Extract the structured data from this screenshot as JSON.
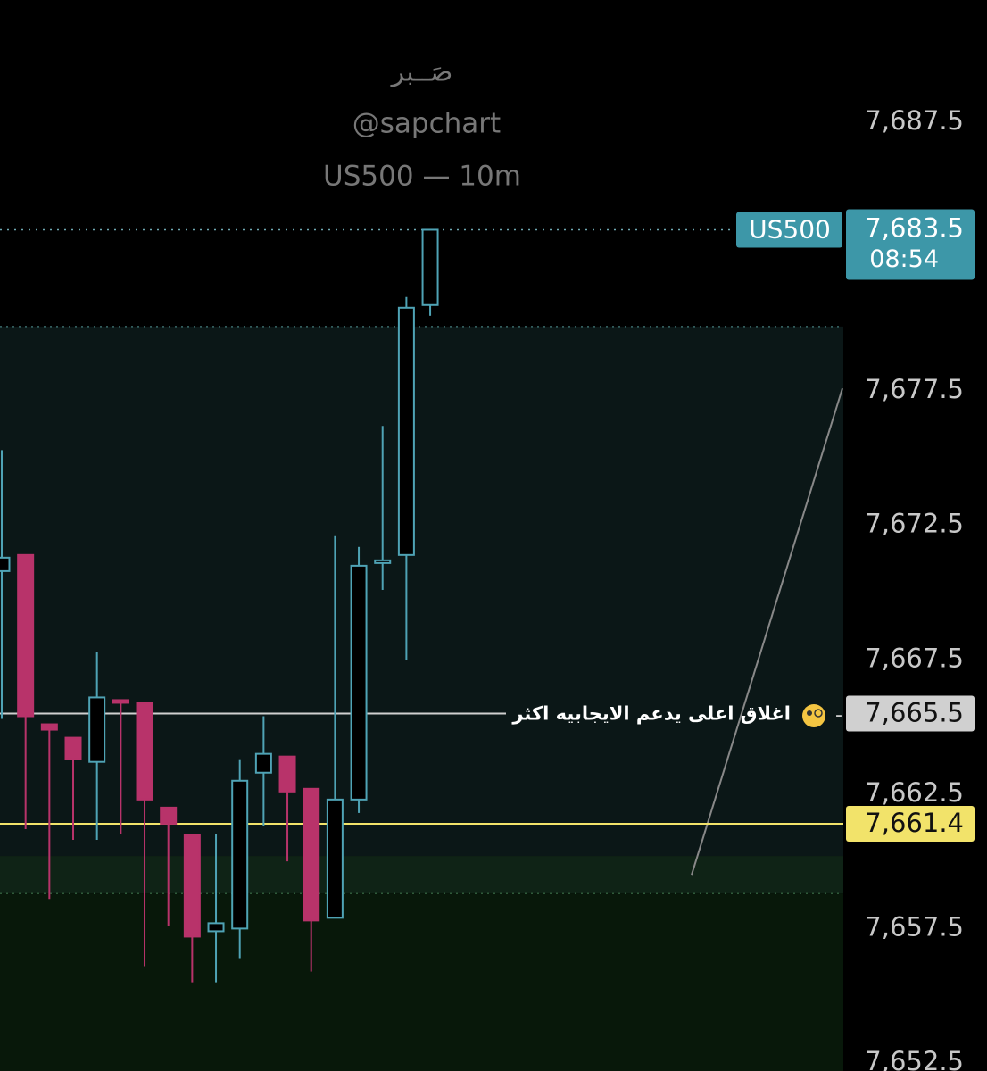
{
  "chart_data": {
    "type": "candlestick",
    "title": "صَــبر",
    "subtitle": "@sapchart",
    "interval_label": "US500 — 10m",
    "ylim": [
      7652.2,
      7692.05
    ],
    "yticks": [
      {
        "value": 7687.5,
        "label": "7,687.5"
      },
      {
        "value": 7677.5,
        "label": "7,677.5"
      },
      {
        "value": 7672.5,
        "label": "7,672.5"
      },
      {
        "value": 7667.5,
        "label": "7,667.5"
      },
      {
        "value": 7662.5,
        "label": "7,662.5"
      },
      {
        "value": 7657.5,
        "label": "7,657.5"
      },
      {
        "value": 7652.5,
        "label": "7,652.5"
      }
    ],
    "series": {
      "name": "US500",
      "color": "#4fa3b5",
      "down_color": "#b8336a",
      "open": [
        7670.8,
        7671.4,
        7665.1,
        7664.6,
        7663.7,
        7666.0,
        7665.9,
        7662.0,
        7661.0,
        7657.4,
        7657.5,
        7663.3,
        7663.9,
        7662.7,
        7657.9,
        7662.3,
        7671.1,
        7671.4,
        7680.7
      ],
      "high": [
        7675.3,
        7673.2,
        7665.6,
        7666.5,
        7667.8,
        7667.0,
        7665.9,
        7662.0,
        7661.3,
        7661.0,
        7663.8,
        7665.4,
        7666.8,
        7663.6,
        7672.1,
        7671.7,
        7676.2,
        7681.0,
        7683.5
      ],
      "low": [
        7665.3,
        7661.2,
        7658.6,
        7660.8,
        7660.8,
        7661.0,
        7656.1,
        7657.6,
        7655.5,
        7655.5,
        7656.4,
        7661.3,
        7660.0,
        7655.9,
        7657.9,
        7661.8,
        7670.1,
        7667.5,
        7680.3
      ],
      "close": [
        7671.3,
        7665.4,
        7664.9,
        7663.8,
        7666.1,
        7665.9,
        7662.3,
        7661.4,
        7657.2,
        7657.7,
        7663.0,
        7664.0,
        7662.6,
        7657.8,
        7662.3,
        7671.0,
        7671.2,
        7680.6,
        7683.5
      ]
    },
    "last_price": {
      "value": 7683.5,
      "label": "7,683.5",
      "countdown": "08:54"
    },
    "lines": [
      {
        "value": 7665.5,
        "label": "7,665.5",
        "color": "#d0d0d0",
        "annotation": "اغلاق اعلى يدعم الايجابيه اكثر"
      },
      {
        "value": 7661.4,
        "label": "7,661.4",
        "color": "#f2e36a"
      }
    ],
    "zones": [
      {
        "top": 7679.9,
        "bottom": 7660.2,
        "color": "#0b1717"
      },
      {
        "top": 7660.2,
        "bottom": 7658.8,
        "color": "#0f2316"
      },
      {
        "top": 7658.8,
        "bottom": 7652.2,
        "color": "#08180a"
      }
    ],
    "trendline": {
      "from": 7659.5,
      "to": 7677.6
    }
  }
}
